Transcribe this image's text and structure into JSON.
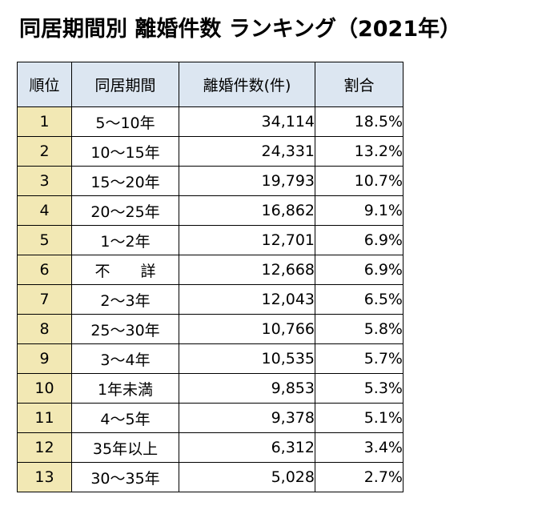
{
  "page": {
    "title": "同居期間別 離婚件数 ランキング（2021年）"
  },
  "table": {
    "headers": [
      "順位",
      "同居期間",
      "離婚件数(件)",
      "割合"
    ],
    "rows": [
      {
        "rank": "1",
        "period": "5～10年",
        "count": "34,114",
        "ratio": "18.5%"
      },
      {
        "rank": "2",
        "period": "10～15年",
        "count": "24,331",
        "ratio": "13.2%"
      },
      {
        "rank": "3",
        "period": "15～20年",
        "count": "19,793",
        "ratio": "10.7%"
      },
      {
        "rank": "4",
        "period": "20～25年",
        "count": "16,862",
        "ratio": "9.1%"
      },
      {
        "rank": "5",
        "period": "1～2年",
        "count": "12,701",
        "ratio": "6.9%"
      },
      {
        "rank": "6",
        "period": "不　　詳",
        "count": "12,668",
        "ratio": "6.9%"
      },
      {
        "rank": "7",
        "period": "2～3年",
        "count": "12,043",
        "ratio": "6.5%"
      },
      {
        "rank": "8",
        "period": "25～30年",
        "count": "10,766",
        "ratio": "5.8%"
      },
      {
        "rank": "9",
        "period": "3～4年",
        "count": "10,535",
        "ratio": "5.7%"
      },
      {
        "rank": "10",
        "period": "1年未満",
        "count": "9,853",
        "ratio": "5.3%"
      },
      {
        "rank": "11",
        "period": "4～5年",
        "count": "9,378",
        "ratio": "5.1%"
      },
      {
        "rank": "12",
        "period": "35年以上",
        "count": "6,312",
        "ratio": "3.4%"
      },
      {
        "rank": "13",
        "period": "30～35年",
        "count": "5,028",
        "ratio": "2.7%"
      }
    ]
  },
  "colors": {
    "header_bg": "#dce6f1",
    "rank_bg": "#f2e8b4",
    "border": "#000000"
  },
  "chart_data": {
    "type": "table",
    "title": "同居期間別 離婚件数 ランキング（2021年）",
    "columns": [
      "順位",
      "同居期間",
      "離婚件数(件)",
      "割合"
    ],
    "rows": [
      [
        1,
        "5～10年",
        34114,
        18.5
      ],
      [
        2,
        "10～15年",
        24331,
        13.2
      ],
      [
        3,
        "15～20年",
        19793,
        10.7
      ],
      [
        4,
        "20～25年",
        16862,
        9.1
      ],
      [
        5,
        "1～2年",
        12701,
        6.9
      ],
      [
        6,
        "不　　詳",
        12668,
        6.9
      ],
      [
        7,
        "2～3年",
        12043,
        6.5
      ],
      [
        8,
        "25～30年",
        10766,
        5.8
      ],
      [
        9,
        "3～4年",
        10535,
        5.7
      ],
      [
        10,
        "1年未満",
        9853,
        5.3
      ],
      [
        11,
        "4～5年",
        9378,
        5.1
      ],
      [
        12,
        "35年以上",
        6312,
        3.4
      ],
      [
        13,
        "30～35年",
        5028,
        2.7
      ]
    ]
  }
}
